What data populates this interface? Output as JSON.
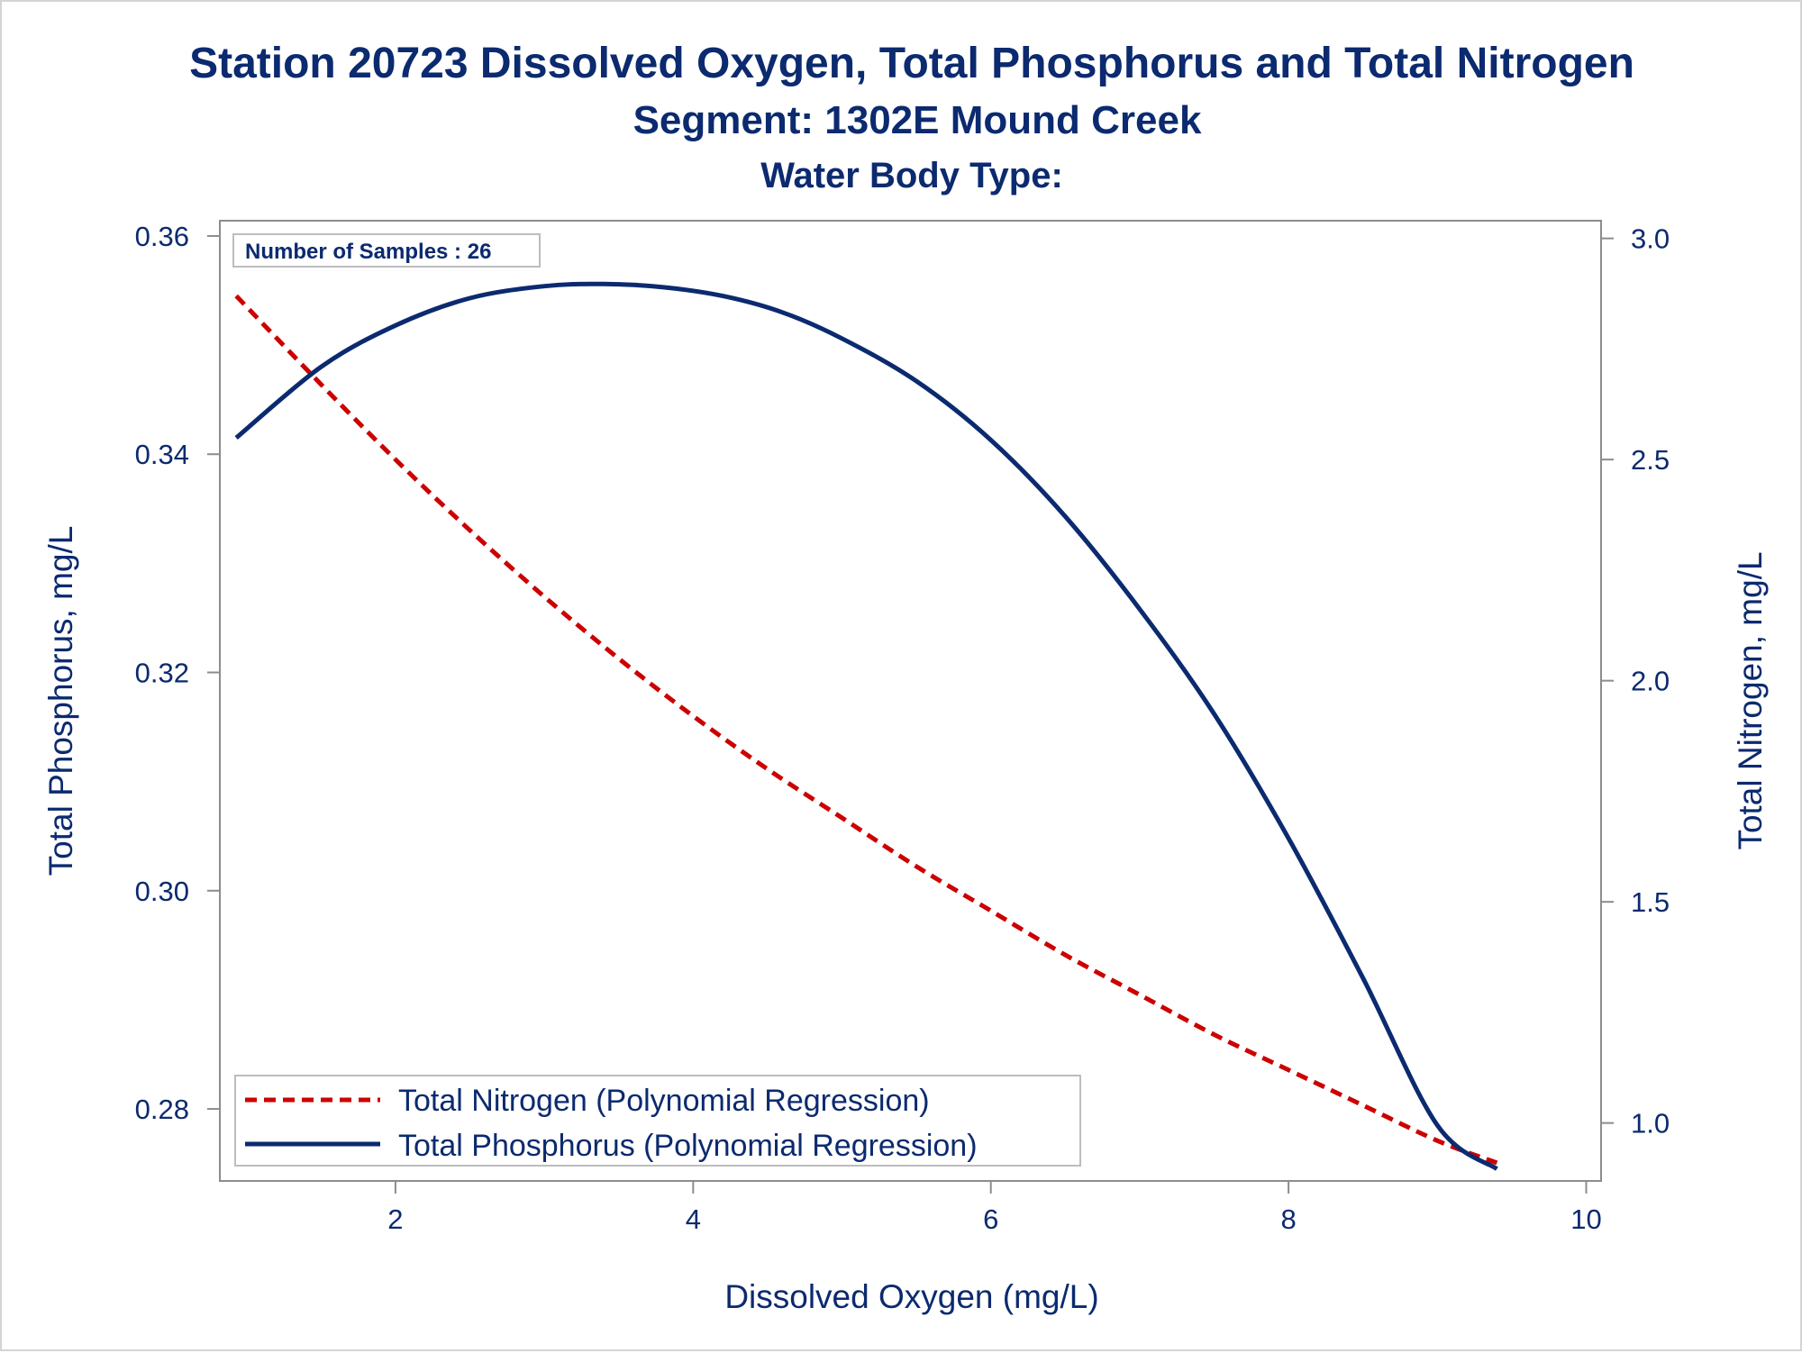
{
  "chart_data": {
    "type": "line",
    "title": "Station 20723  Dissolved Oxygen, Total Phosphorus and Total Nitrogen",
    "subtitle": "Segment: 1302E  Mound Creek",
    "subtitle2": "Water Body Type:",
    "xlabel": "Dissolved Oxygen (mg/L)",
    "ylabel_left": "Total Phosphorus, mg/L",
    "ylabel_right": "Total Nitrogen, mg/L",
    "xlim": [
      0.82,
      10.1
    ],
    "ylim_left": [
      0.2734,
      0.3614
    ],
    "ylim_right": [
      0.869,
      3.04
    ],
    "x_ticks": [
      2,
      4,
      6,
      8,
      10
    ],
    "x_tick_labels": [
      "2",
      "4",
      "6",
      "8",
      "10"
    ],
    "y_left_ticks": [
      0.28,
      0.3,
      0.32,
      0.34,
      0.36
    ],
    "y_left_tick_labels": [
      "0.28",
      "0.30",
      "0.32",
      "0.34",
      "0.36"
    ],
    "y_right_ticks": [
      1.0,
      1.5,
      2.0,
      2.5,
      3.0
    ],
    "y_right_tick_labels": [
      "1.0",
      "1.5",
      "2.0",
      "2.5",
      "3.0"
    ],
    "inset_label": "Number of Samples : 26",
    "legend_position": "bottom-left",
    "series": [
      {
        "name": "Total Nitrogen (Polynomial Regression)",
        "axis": "right",
        "style": "dashed",
        "color": "#cc0000",
        "x": [
          0.93,
          1.5,
          2.0,
          2.5,
          3.0,
          3.5,
          4.0,
          4.5,
          5.0,
          5.5,
          6.0,
          6.5,
          7.0,
          7.5,
          8.0,
          8.5,
          9.0,
          9.4
        ],
        "y": [
          2.87,
          2.67,
          2.5,
          2.34,
          2.19,
          2.05,
          1.92,
          1.8,
          1.69,
          1.58,
          1.48,
          1.38,
          1.29,
          1.2,
          1.12,
          1.04,
          0.96,
          0.91
        ]
      },
      {
        "name": "Total Phosphorus (Polynomial Regression)",
        "axis": "left",
        "style": "solid",
        "color": "#0b2a6f",
        "x": [
          0.93,
          1.5,
          2.0,
          2.5,
          3.0,
          3.4,
          3.8,
          4.2,
          4.6,
          5.0,
          5.5,
          6.0,
          6.5,
          7.0,
          7.5,
          8.0,
          8.5,
          9.0,
          9.4
        ],
        "y": [
          0.3415,
          0.348,
          0.3518,
          0.3543,
          0.3554,
          0.3556,
          0.3553,
          0.3545,
          0.353,
          0.3506,
          0.3467,
          0.3413,
          0.3343,
          0.3258,
          0.3162,
          0.3048,
          0.292,
          0.2785,
          0.2745
        ]
      }
    ]
  }
}
